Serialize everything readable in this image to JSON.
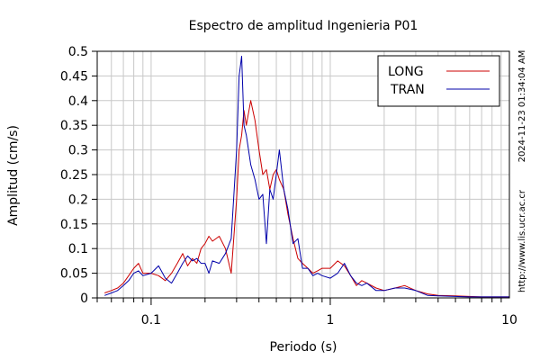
{
  "chart_data": {
    "type": "line",
    "title": "Espectro de amplitud Ingenieria P01",
    "xlabel": "Periodo (s)",
    "ylabel": "Amplitud (cm/s)",
    "x_scale": "log",
    "xlim": [
      0.05,
      10
    ],
    "ylim": [
      0,
      0.5
    ],
    "x_ticks": [
      {
        "value": 0.1,
        "label": "0.1"
      },
      {
        "value": 1,
        "label": "1"
      },
      {
        "value": 10,
        "label": "10"
      }
    ],
    "y_ticks": [
      {
        "value": 0,
        "label": "0"
      },
      {
        "value": 0.05,
        "label": "0.05"
      },
      {
        "value": 0.1,
        "label": "0.1"
      },
      {
        "value": 0.15,
        "label": "0.15"
      },
      {
        "value": 0.2,
        "label": "0.2"
      },
      {
        "value": 0.25,
        "label": "0.25"
      },
      {
        "value": 0.3,
        "label": "0.3"
      },
      {
        "value": 0.35,
        "label": "0.35"
      },
      {
        "value": 0.4,
        "label": "0.4"
      },
      {
        "value": 0.45,
        "label": "0.45"
      },
      {
        "value": 0.5,
        "label": "0.5"
      }
    ],
    "grid": true,
    "legend_position": "top-right",
    "side_text_top": "2024-11-23 01:34:04 AM",
    "side_text_bottom": "http://www.lis.ucr.ac.cr",
    "series": [
      {
        "name": "LONG",
        "color": "#cc0000",
        "x": [
          0.055,
          0.06,
          0.065,
          0.07,
          0.075,
          0.08,
          0.085,
          0.09,
          0.1,
          0.11,
          0.12,
          0.13,
          0.14,
          0.15,
          0.16,
          0.17,
          0.18,
          0.19,
          0.2,
          0.21,
          0.22,
          0.24,
          0.26,
          0.28,
          0.3,
          0.31,
          0.32,
          0.33,
          0.34,
          0.36,
          0.38,
          0.4,
          0.42,
          0.44,
          0.46,
          0.48,
          0.5,
          0.52,
          0.55,
          0.58,
          0.62,
          0.66,
          0.7,
          0.75,
          0.8,
          0.85,
          0.9,
          1.0,
          1.1,
          1.2,
          1.3,
          1.4,
          1.5,
          1.6,
          1.8,
          2.0,
          2.3,
          2.6,
          3.0,
          3.5,
          4.0,
          5.0,
          6.0,
          7.0,
          8.0,
          10.0
        ],
        "y": [
          0.01,
          0.015,
          0.02,
          0.03,
          0.045,
          0.06,
          0.07,
          0.05,
          0.05,
          0.045,
          0.035,
          0.05,
          0.07,
          0.09,
          0.065,
          0.08,
          0.07,
          0.1,
          0.11,
          0.125,
          0.115,
          0.125,
          0.1,
          0.05,
          0.2,
          0.3,
          0.33,
          0.38,
          0.35,
          0.4,
          0.36,
          0.3,
          0.25,
          0.26,
          0.22,
          0.25,
          0.26,
          0.24,
          0.22,
          0.17,
          0.12,
          0.08,
          0.07,
          0.06,
          0.05,
          0.055,
          0.06,
          0.06,
          0.075,
          0.065,
          0.045,
          0.025,
          0.035,
          0.03,
          0.02,
          0.015,
          0.02,
          0.025,
          0.015,
          0.008,
          0.005,
          0.004,
          0.003,
          0.002,
          0.002,
          0.002
        ]
      },
      {
        "name": "TRAN",
        "color": "#0000aa",
        "x": [
          0.055,
          0.06,
          0.065,
          0.07,
          0.075,
          0.08,
          0.085,
          0.09,
          0.1,
          0.11,
          0.12,
          0.13,
          0.14,
          0.15,
          0.16,
          0.17,
          0.18,
          0.19,
          0.2,
          0.21,
          0.22,
          0.24,
          0.26,
          0.28,
          0.3,
          0.31,
          0.32,
          0.33,
          0.34,
          0.36,
          0.38,
          0.4,
          0.42,
          0.44,
          0.46,
          0.48,
          0.5,
          0.52,
          0.55,
          0.58,
          0.62,
          0.66,
          0.7,
          0.75,
          0.8,
          0.85,
          0.9,
          1.0,
          1.1,
          1.2,
          1.3,
          1.4,
          1.5,
          1.6,
          1.8,
          2.0,
          2.3,
          2.6,
          3.0,
          3.5,
          4.0,
          5.0,
          6.0,
          7.0,
          8.0,
          10.0
        ],
        "y": [
          0.005,
          0.01,
          0.015,
          0.025,
          0.035,
          0.05,
          0.055,
          0.045,
          0.05,
          0.065,
          0.04,
          0.03,
          0.05,
          0.07,
          0.085,
          0.075,
          0.08,
          0.07,
          0.07,
          0.05,
          0.075,
          0.07,
          0.09,
          0.12,
          0.3,
          0.45,
          0.49,
          0.35,
          0.33,
          0.27,
          0.24,
          0.2,
          0.21,
          0.11,
          0.22,
          0.2,
          0.25,
          0.3,
          0.22,
          0.18,
          0.11,
          0.12,
          0.06,
          0.06,
          0.045,
          0.05,
          0.045,
          0.04,
          0.05,
          0.07,
          0.045,
          0.03,
          0.025,
          0.03,
          0.015,
          0.015,
          0.02,
          0.02,
          0.015,
          0.005,
          0.004,
          0.003,
          0.002,
          0.002,
          0.002,
          0.002
        ]
      }
    ]
  }
}
